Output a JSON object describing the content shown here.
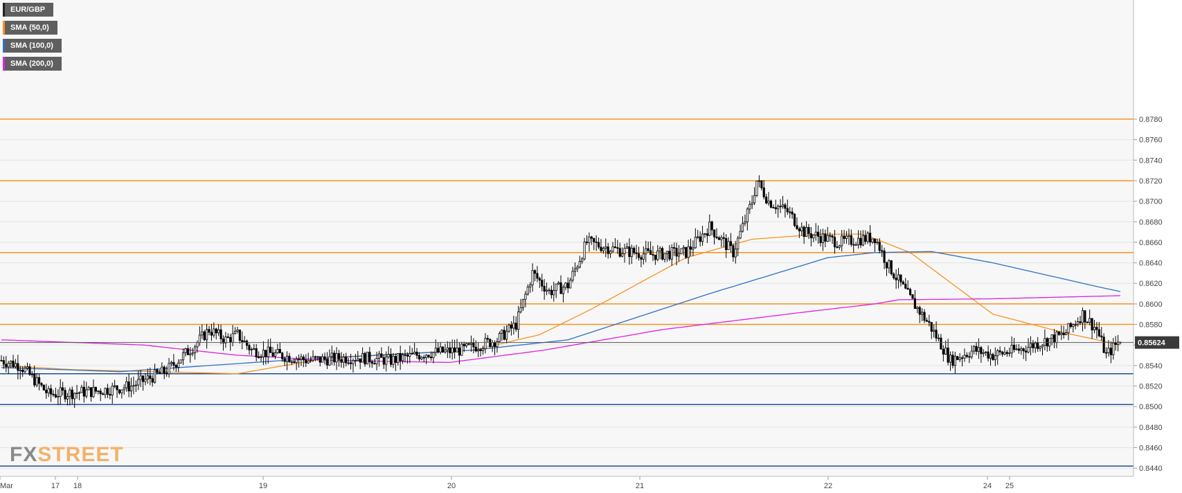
{
  "legend": [
    {
      "label": "EUR/GBP",
      "color": "#222222"
    },
    {
      "label": "SMA (50,0)",
      "color": "#f7931e"
    },
    {
      "label": "SMA (100,0)",
      "color": "#2e6fc7"
    },
    {
      "label": "SMA (200,0)",
      "color": "#e020e0"
    }
  ],
  "logo": {
    "part1": "FX",
    "part2": "STREET"
  },
  "colors": {
    "resistance": "#f7931e",
    "support": "#1f4e9c",
    "sma50": "#f7931e",
    "sma100": "#2e6fc7",
    "sma200": "#e020e0",
    "bull": "#ffffff",
    "bear": "#000000"
  },
  "chart_data": {
    "type": "candlestick",
    "title": "EUR/GBP",
    "ylim": [
      0.8432,
      0.8896
    ],
    "y_ticks": [
      "0.8440",
      "0.8460",
      "0.8480",
      "0.8500",
      "0.8520",
      "0.8540",
      "0.8560",
      "0.8580",
      "0.8600",
      "0.8620",
      "0.8640",
      "0.8660",
      "0.8680",
      "0.8700",
      "0.8720",
      "0.8740",
      "0.8760",
      "0.8780"
    ],
    "x_ticks": [
      "Mar",
      "17",
      "18",
      "19",
      "20",
      "21",
      "22",
      "24",
      "25"
    ],
    "current_price": "0.85624",
    "resistance_levels": [
      0.878,
      0.872,
      0.865,
      0.86,
      0.858
    ],
    "support_levels": [
      0.8532,
      0.8502,
      0.8442
    ],
    "candles": {
      "count": 360,
      "keypoints": [
        [
          0,
          0.8545
        ],
        [
          8,
          0.854
        ],
        [
          20,
          0.8512
        ],
        [
          40,
          0.8515
        ],
        [
          55,
          0.852
        ],
        [
          70,
          0.8535
        ],
        [
          82,
          0.856
        ],
        [
          88,
          0.8575
        ],
        [
          95,
          0.8565
        ],
        [
          100,
          0.857
        ],
        [
          106,
          0.8555
        ],
        [
          130,
          0.8545
        ],
        [
          150,
          0.8548
        ],
        [
          165,
          0.8545
        ],
        [
          180,
          0.8552
        ],
        [
          195,
          0.8555
        ],
        [
          210,
          0.8565
        ],
        [
          218,
          0.858
        ],
        [
          225,
          0.863
        ],
        [
          232,
          0.8612
        ],
        [
          240,
          0.8618
        ],
        [
          248,
          0.866
        ],
        [
          262,
          0.8652
        ],
        [
          275,
          0.8648
        ],
        [
          290,
          0.865
        ],
        [
          300,
          0.8675
        ],
        [
          310,
          0.865
        ],
        [
          318,
          0.87
        ],
        [
          320,
          0.872
        ],
        [
          325,
          0.87
        ],
        [
          333,
          0.869
        ],
        [
          340,
          0.867
        ],
        [
          355,
          0.866
        ],
        [
          370,
          0.8665
        ],
        [
          375,
          0.864
        ],
        [
          385,
          0.8605
        ],
        [
          393,
          0.858
        ],
        [
          402,
          0.8545
        ],
        [
          412,
          0.8555
        ],
        [
          420,
          0.855
        ],
        [
          432,
          0.8556
        ],
        [
          450,
          0.857
        ],
        [
          458,
          0.859
        ],
        [
          464,
          0.8575
        ],
        [
          468,
          0.855
        ],
        [
          474,
          0.8565
        ]
      ]
    },
    "series": [
      {
        "name": "SMA (50,0)",
        "keypoints": [
          [
            0,
            0.854
          ],
          [
            30,
            0.8536
          ],
          [
            100,
            0.8532
          ],
          [
            140,
            0.8548
          ],
          [
            200,
            0.8555
          ],
          [
            228,
            0.857
          ],
          [
            250,
            0.8595
          ],
          [
            290,
            0.8645
          ],
          [
            318,
            0.8663
          ],
          [
            348,
            0.8668
          ],
          [
            365,
            0.8668
          ],
          [
            385,
            0.865
          ],
          [
            420,
            0.859
          ],
          [
            450,
            0.8572
          ],
          [
            474,
            0.856
          ]
        ]
      },
      {
        "name": "SMA (100,0)",
        "keypoints": [
          [
            0,
            0.8538
          ],
          [
            50,
            0.8534
          ],
          [
            120,
            0.8545
          ],
          [
            200,
            0.8555
          ],
          [
            240,
            0.8565
          ],
          [
            300,
            0.861
          ],
          [
            350,
            0.8645
          ],
          [
            370,
            0.865
          ],
          [
            394,
            0.8651
          ],
          [
            420,
            0.864
          ],
          [
            462,
            0.8618
          ],
          [
            474,
            0.8612
          ]
        ]
      },
      {
        "name": "SMA (200,0)",
        "keypoints": [
          [
            0,
            0.8565
          ],
          [
            60,
            0.856
          ],
          [
            100,
            0.855
          ],
          [
            140,
            0.8545
          ],
          [
            190,
            0.8543
          ],
          [
            230,
            0.8555
          ],
          [
            280,
            0.8575
          ],
          [
            340,
            0.8592
          ],
          [
            370,
            0.86
          ],
          [
            380,
            0.8604
          ],
          [
            420,
            0.8605
          ],
          [
            474,
            0.8608
          ]
        ]
      }
    ]
  }
}
